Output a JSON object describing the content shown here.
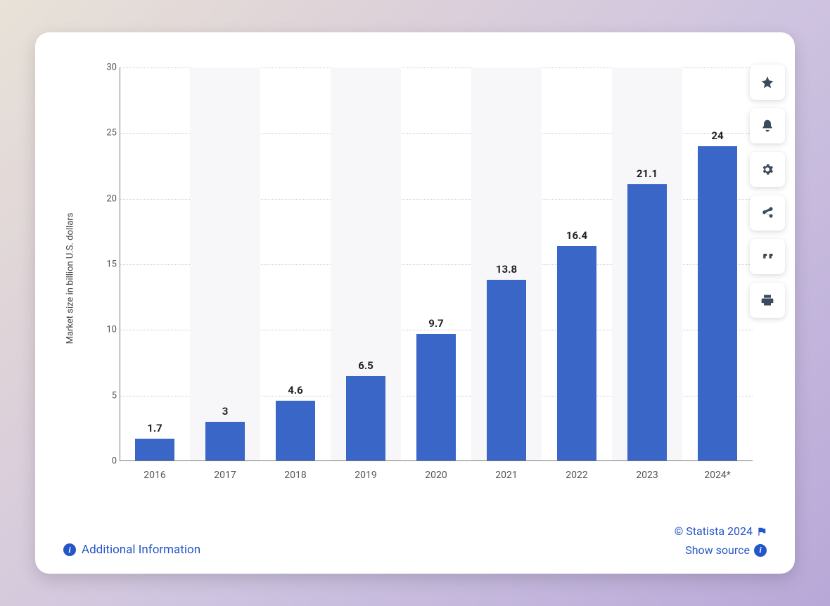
{
  "chart": {
    "type": "bar",
    "y_axis_label": "Market size in billion U.S. dollars",
    "categories": [
      "2016",
      "2017",
      "2018",
      "2019",
      "2020",
      "2021",
      "2022",
      "2023",
      "2024*"
    ],
    "values": [
      1.7,
      3,
      4.6,
      6.5,
      9.7,
      13.8,
      16.4,
      21.1,
      24
    ],
    "value_labels": [
      "1.7",
      "3",
      "4.6",
      "6.5",
      "9.7",
      "13.8",
      "16.4",
      "21.1",
      "24"
    ],
    "ylim": [
      0,
      30
    ],
    "ytick_step": 5,
    "yticks": [
      0,
      5,
      10,
      15,
      20,
      25,
      30
    ],
    "bar_color": "#3a66c8",
    "bar_width_ratio": 0.56,
    "grid_color": "#cccccc",
    "alt_background_color": "#f7f7f9",
    "label_fontsize": 15,
    "tick_fontsize": 13,
    "background_color": "#ffffff"
  },
  "footer": {
    "additional_info_label": "Additional Information",
    "copyright_text": "© Statista 2024",
    "show_source_label": "Show source"
  },
  "side_actions": {
    "items": [
      {
        "name": "favorite",
        "icon": "star"
      },
      {
        "name": "notify",
        "icon": "bell"
      },
      {
        "name": "settings",
        "icon": "gear"
      },
      {
        "name": "share",
        "icon": "share"
      },
      {
        "name": "cite",
        "icon": "quote"
      },
      {
        "name": "print",
        "icon": "print"
      }
    ]
  }
}
